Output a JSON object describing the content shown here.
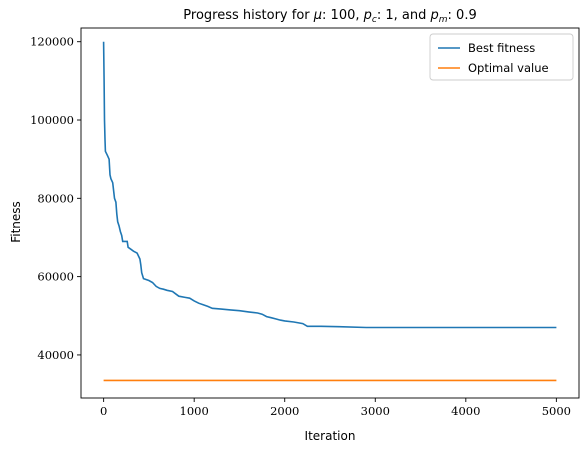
{
  "chart_data": {
    "type": "line",
    "title_prefix": "Progress history for ",
    "title_parts": [
      {
        "sym": "μ",
        "sub": "",
        "val": "100",
        "sep": ", "
      },
      {
        "sym": "p",
        "sub": "c",
        "val": "1",
        "sep": ", and "
      },
      {
        "sym": "p",
        "sub": "m",
        "val": "0.9",
        "sep": ""
      }
    ],
    "xlabel": "Iteration",
    "ylabel": "Fitness",
    "xlim": [
      -250,
      5250
    ],
    "ylim": [
      29000,
      123500
    ],
    "x_ticks": [
      0,
      1000,
      2000,
      3000,
      4000,
      5000
    ],
    "y_ticks": [
      40000,
      60000,
      80000,
      100000,
      120000
    ],
    "legend_position": "top-right",
    "series": [
      {
        "name": "Best fitness",
        "color": "#1f77b4",
        "points": [
          [
            0,
            120000
          ],
          [
            5,
            110000
          ],
          [
            10,
            100000
          ],
          [
            15,
            95000
          ],
          [
            20,
            92000
          ],
          [
            40,
            91000
          ],
          [
            60,
            90000
          ],
          [
            70,
            86000
          ],
          [
            80,
            85000
          ],
          [
            100,
            84000
          ],
          [
            110,
            82000
          ],
          [
            120,
            80000
          ],
          [
            135,
            79000
          ],
          [
            145,
            76000
          ],
          [
            155,
            74000
          ],
          [
            170,
            73000
          ],
          [
            185,
            71500
          ],
          [
            200,
            70500
          ],
          [
            210,
            69000
          ],
          [
            260,
            69000
          ],
          [
            270,
            67500
          ],
          [
            300,
            67000
          ],
          [
            330,
            66500
          ],
          [
            370,
            66000
          ],
          [
            400,
            64500
          ],
          [
            410,
            63000
          ],
          [
            420,
            61000
          ],
          [
            440,
            59500
          ],
          [
            500,
            59000
          ],
          [
            540,
            58500
          ],
          [
            580,
            57500
          ],
          [
            620,
            57000
          ],
          [
            660,
            56800
          ],
          [
            700,
            56500
          ],
          [
            760,
            56200
          ],
          [
            800,
            55500
          ],
          [
            830,
            55000
          ],
          [
            900,
            54700
          ],
          [
            950,
            54500
          ],
          [
            1000,
            53800
          ],
          [
            1050,
            53200
          ],
          [
            1100,
            52800
          ],
          [
            1150,
            52400
          ],
          [
            1200,
            51900
          ],
          [
            1300,
            51700
          ],
          [
            1400,
            51500
          ],
          [
            1500,
            51300
          ],
          [
            1600,
            51000
          ],
          [
            1700,
            50700
          ],
          [
            1750,
            50400
          ],
          [
            1800,
            49800
          ],
          [
            1850,
            49500
          ],
          [
            1900,
            49200
          ],
          [
            1950,
            48900
          ],
          [
            2000,
            48700
          ],
          [
            2100,
            48400
          ],
          [
            2200,
            48000
          ],
          [
            2250,
            47300
          ],
          [
            2400,
            47300
          ],
          [
            2600,
            47200
          ],
          [
            2900,
            47000
          ],
          [
            5000,
            47000
          ]
        ]
      },
      {
        "name": "Optimal value",
        "color": "#ff7f0e",
        "points": [
          [
            0,
            33500
          ],
          [
            5000,
            33500
          ]
        ]
      }
    ]
  }
}
